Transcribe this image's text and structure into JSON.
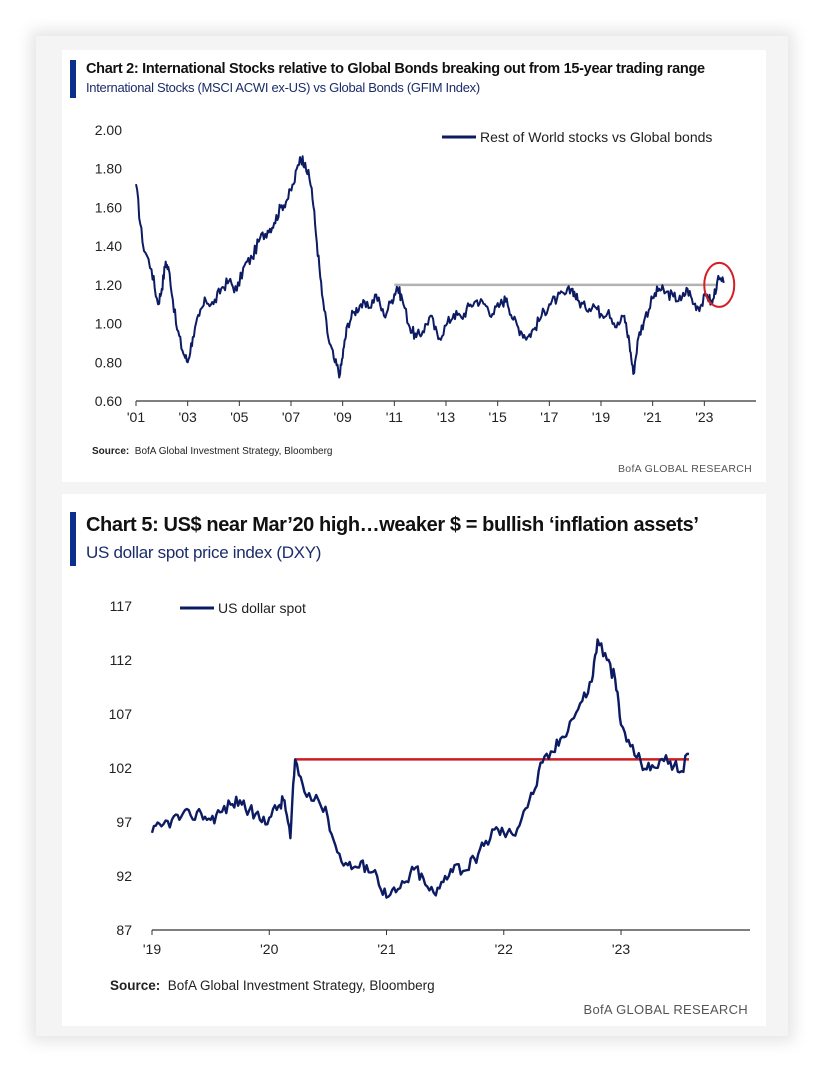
{
  "colors": {
    "series": "#0d1b63",
    "accent": "#0b2f8a",
    "resistance_grey": "#b3b3b3",
    "resistance_red": "#cc1d23",
    "circle": "#d41f26",
    "axis": "#333333"
  },
  "chart_data": [
    {
      "type": "line",
      "title": "Chart 2: International Stocks relative to Global Bonds breaking out from 15-year trading range",
      "subtitle": "International Stocks (MSCI ACWI ex-US) vs Global Bonds (GFIM Index)",
      "legend": "Rest of World stocks vs Global bonds",
      "legend_position": "top-right",
      "xlim": [
        2001,
        2025
      ],
      "ylim": [
        0.6,
        2.0
      ],
      "x_ticks": [
        2001,
        2003,
        2005,
        2007,
        2009,
        2011,
        2013,
        2015,
        2017,
        2019,
        2021,
        2023
      ],
      "x_tick_labels": [
        "'01",
        "'03",
        "'05",
        "'07",
        "'09",
        "'11",
        "'13",
        "'15",
        "'17",
        "'19",
        "'21",
        "'23"
      ],
      "y_ticks": [
        0.6,
        0.8,
        1.0,
        1.2,
        1.4,
        1.6,
        1.8,
        2.0
      ],
      "y_tick_labels": [
        "0.60",
        "0.80",
        "1.00",
        "1.20",
        "1.40",
        "1.60",
        "1.80",
        "2.00"
      ],
      "series": [
        {
          "name": "Rest of World stocks vs Global bonds",
          "x": [
            2001.0,
            2001.25,
            2001.6,
            2001.85,
            2002.0,
            2002.15,
            2002.3,
            2002.55,
            2002.8,
            2003.0,
            2003.2,
            2003.45,
            2003.7,
            2004.0,
            2004.3,
            2004.6,
            2004.9,
            2005.2,
            2005.5,
            2005.8,
            2006.1,
            2006.35,
            2006.6,
            2006.85,
            2007.1,
            2007.35,
            2007.55,
            2007.8,
            2008.0,
            2008.2,
            2008.45,
            2008.7,
            2008.9,
            2009.05,
            2009.2,
            2009.45,
            2009.7,
            2010.0,
            2010.3,
            2010.6,
            2010.9,
            2011.1,
            2011.3,
            2011.6,
            2011.85,
            2012.1,
            2012.4,
            2012.7,
            2013.0,
            2013.3,
            2013.6,
            2013.9,
            2014.2,
            2014.5,
            2014.8,
            2015.1,
            2015.35,
            2015.6,
            2015.9,
            2016.15,
            2016.4,
            2016.7,
            2017.0,
            2017.3,
            2017.6,
            2017.9,
            2018.1,
            2018.4,
            2018.7,
            2019.0,
            2019.3,
            2019.6,
            2019.9,
            2020.1,
            2020.25,
            2020.45,
            2020.7,
            2021.0,
            2021.25,
            2021.5,
            2021.8,
            2022.1,
            2022.35,
            2022.6,
            2022.85,
            2023.1,
            2023.3,
            2023.5,
            2023.75
          ],
          "values": [
            1.72,
            1.42,
            1.28,
            1.1,
            1.18,
            1.32,
            1.26,
            1.0,
            0.86,
            0.8,
            0.93,
            1.04,
            1.12,
            1.1,
            1.18,
            1.22,
            1.17,
            1.3,
            1.34,
            1.44,
            1.48,
            1.52,
            1.6,
            1.64,
            1.72,
            1.86,
            1.83,
            1.7,
            1.42,
            1.15,
            0.92,
            0.8,
            0.74,
            0.88,
            1.0,
            1.06,
            1.1,
            1.08,
            1.15,
            1.04,
            1.12,
            1.19,
            1.13,
            0.98,
            0.93,
            0.96,
            1.04,
            0.92,
            0.99,
            1.05,
            1.03,
            1.09,
            1.12,
            1.1,
            1.05,
            1.1,
            1.13,
            1.02,
            0.96,
            0.93,
            0.97,
            1.04,
            1.1,
            1.13,
            1.15,
            1.18,
            1.12,
            1.08,
            1.1,
            1.05,
            1.07,
            0.98,
            1.04,
            0.9,
            0.74,
            0.93,
            1.03,
            1.13,
            1.18,
            1.16,
            1.14,
            1.12,
            1.18,
            1.1,
            1.09,
            1.15,
            1.1,
            1.22,
            1.21
          ]
        }
      ],
      "resistance_line": {
        "y": 1.2,
        "x_start": 2011.0,
        "x_end": 2023.5
      },
      "highlight": {
        "shape": "circle",
        "x": 2023.5,
        "y": 1.2
      }
    },
    {
      "type": "line",
      "title": "Chart 5: US$ near Mar’20 high…weaker $ = bullish ‘inflation assets’",
      "subtitle": "US dollar spot price index (DXY)",
      "legend": "US dollar spot",
      "legend_position": "top-left",
      "xlim": [
        2019,
        2024.1
      ],
      "ylim": [
        87,
        117
      ],
      "x_ticks": [
        2019,
        2020,
        2021,
        2022,
        2023
      ],
      "x_tick_labels": [
        "'19",
        "'20",
        "'21",
        "'22",
        "'23"
      ],
      "y_ticks": [
        87,
        92,
        97,
        102,
        107,
        112,
        117
      ],
      "y_tick_labels": [
        "87",
        "92",
        "97",
        "102",
        "107",
        "112",
        "117"
      ],
      "series": [
        {
          "name": "US dollar spot",
          "x": [
            2019.0,
            2019.08,
            2019.17,
            2019.25,
            2019.33,
            2019.42,
            2019.5,
            2019.58,
            2019.67,
            2019.75,
            2019.83,
            2019.92,
            2020.0,
            2020.08,
            2020.13,
            2020.18,
            2020.22,
            2020.3,
            2020.4,
            2020.5,
            2020.58,
            2020.67,
            2020.75,
            2020.83,
            2020.92,
            2021.0,
            2021.08,
            2021.17,
            2021.25,
            2021.33,
            2021.42,
            2021.5,
            2021.58,
            2021.67,
            2021.75,
            2021.83,
            2021.92,
            2022.0,
            2022.08,
            2022.17,
            2022.25,
            2022.33,
            2022.42,
            2022.5,
            2022.58,
            2022.67,
            2022.75,
            2022.8,
            2022.88,
            2022.95,
            2023.0,
            2023.08,
            2023.17,
            2023.25,
            2023.33,
            2023.42,
            2023.5,
            2023.58
          ],
          "values": [
            96.0,
            96.6,
            97.2,
            97.5,
            97.6,
            97.8,
            97.2,
            97.9,
            98.6,
            99.0,
            98.1,
            97.2,
            97.4,
            98.5,
            99.0,
            95.5,
            102.8,
            99.8,
            99.5,
            97.4,
            94.2,
            93.0,
            92.8,
            93.0,
            92.0,
            90.0,
            90.5,
            91.5,
            92.8,
            91.2,
            90.2,
            92.0,
            93.0,
            92.5,
            93.6,
            94.8,
            96.3,
            96.0,
            95.8,
            98.0,
            99.6,
            102.5,
            103.5,
            104.9,
            106.5,
            108.2,
            110.0,
            113.9,
            112.0,
            110.2,
            106.0,
            104.0,
            102.5,
            101.8,
            102.7,
            102.6,
            101.6,
            103.3
          ]
        }
      ],
      "resistance_line": {
        "y": 102.8,
        "x_start": 2020.22,
        "x_end": 2023.58
      }
    }
  ],
  "panel1": {
    "source_label": "Source:",
    "source_text": "BofA Global Investment Strategy, Bloomberg",
    "footer": "BofA GLOBAL RESEARCH"
  },
  "panel2": {
    "source_label": "Source:",
    "source_text": "BofA Global Investment Strategy, Bloomberg",
    "footer": "BofA GLOBAL RESEARCH"
  }
}
